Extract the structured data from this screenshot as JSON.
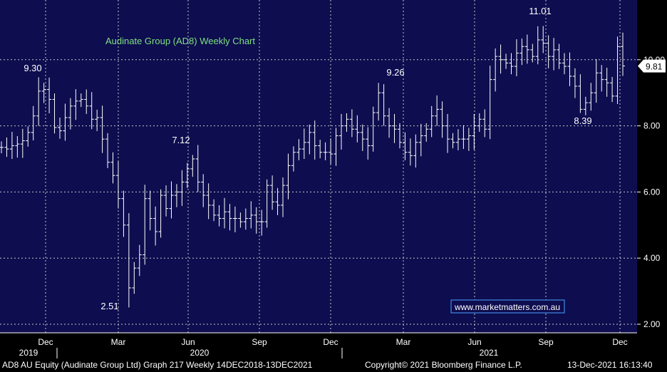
{
  "footer": {
    "security": "AD8 AU Equity (Audinate Group Ltd) Graph 217  Weekly 14DEC2018-13DEC2021",
    "copyright": "Copyright© 2021 Bloomberg Finance L.P.",
    "timestamp": "13-Dec-2021 16:13:40"
  },
  "colors": {
    "plot_background": "#0d0d4f",
    "axis_background": "#000000",
    "bars": "#ffffff",
    "grid": "#c8c8c8",
    "title": "#7fe07f",
    "watermark_border": "#4aa3ff",
    "price_tag_background": "#ffffff",
    "price_tag_text": "#000000"
  },
  "chart_data": {
    "type": "ohlc",
    "title": "Audinate Group (AD8) Weekly Chart",
    "watermark": "www.marketmatters.com.au",
    "xlabel": "",
    "ylabel": "",
    "y_ticks": [
      "2.00",
      "4.00",
      "6.00",
      "8.00",
      "10.00"
    ],
    "ylim": [
      1.8,
      11.8
    ],
    "x_ticks": [
      "Dec",
      "Mar",
      "Jun",
      "Sep",
      "Dec",
      "Mar",
      "Jun",
      "Sep",
      "Dec"
    ],
    "x_years": [
      "2019",
      "2020",
      "2021"
    ],
    "grid": true,
    "last_price": "9.81",
    "annotations": [
      "9.30",
      "2.51",
      "7.12",
      "9.26",
      "11.01",
      "8.39"
    ],
    "weekly_close": [
      7.35,
      7.3,
      7.4,
      7.45,
      7.55,
      7.8,
      8.3,
      9.05,
      9.1,
      8.8,
      7.95,
      7.85,
      8.25,
      8.6,
      8.75,
      8.8,
      8.6,
      8.2,
      8.25,
      7.6,
      6.9,
      6.5,
      5.8,
      5.0,
      3.1,
      3.7,
      4.1,
      5.8,
      5.2,
      4.8,
      5.9,
      5.5,
      5.9,
      6.0,
      6.3,
      6.7,
      7.0,
      6.3,
      5.9,
      5.6,
      5.3,
      5.2,
      5.4,
      5.2,
      5.2,
      5.1,
      5.2,
      5.3,
      5.1,
      5.1,
      6.2,
      5.7,
      5.6,
      6.2,
      6.8,
      7.2,
      7.3,
      7.5,
      7.8,
      7.4,
      7.2,
      7.2,
      7.15,
      7.7,
      8.0,
      8.2,
      7.9,
      7.8,
      7.6,
      7.4,
      8.4,
      9.0,
      8.3,
      8.0,
      7.9,
      7.5,
      7.2,
      7.1,
      7.5,
      7.7,
      7.9,
      8.3,
      8.5,
      8.0,
      7.6,
      7.5,
      7.6,
      7.6,
      7.7,
      8.0,
      8.2,
      7.9,
      9.4,
      10.1,
      10.0,
      9.9,
      9.8,
      10.2,
      10.4,
      10.3,
      10.1,
      10.6,
      10.5,
      10.1,
      10.3,
      9.9,
      9.8,
      9.5,
      9.2,
      8.5,
      8.7,
      9.0,
      9.6,
      9.4,
      9.3,
      8.9,
      10.4,
      9.81
    ]
  }
}
